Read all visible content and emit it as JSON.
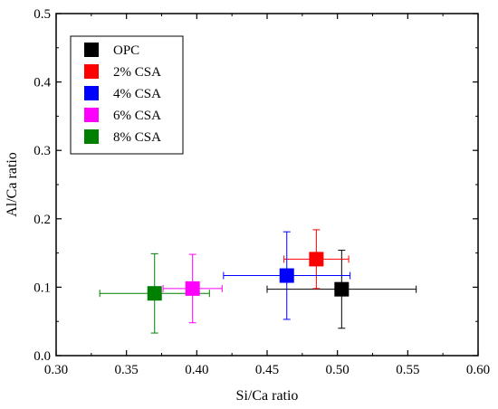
{
  "chart_data": {
    "type": "scatter",
    "title": "",
    "xlabel": "Si/Ca ratio",
    "ylabel": "Al/Ca ratio",
    "xlim": [
      0.3,
      0.6
    ],
    "ylim": [
      0.0,
      0.5
    ],
    "xticks": [
      "0.30",
      "0.35",
      "0.40",
      "0.45",
      "0.50",
      "0.55",
      "0.60"
    ],
    "yticks": [
      "0.0",
      "0.1",
      "0.2",
      "0.3",
      "0.4",
      "0.5"
    ],
    "grid": false,
    "legend_position": "top-left",
    "series": [
      {
        "name": "OPC",
        "color": "#000000",
        "x": 0.503,
        "y": 0.097,
        "x_err_minus": 0.053,
        "x_err_plus": 0.053,
        "y_err_minus": 0.057,
        "y_err_plus": 0.057
      },
      {
        "name": "2% CSA",
        "color": "#ff0000",
        "x": 0.485,
        "y": 0.141,
        "x_err_minus": 0.023,
        "x_err_plus": 0.023,
        "y_err_minus": 0.043,
        "y_err_plus": 0.043
      },
      {
        "name": "4% CSA",
        "color": "#0000ff",
        "x": 0.464,
        "y": 0.117,
        "x_err_minus": 0.045,
        "x_err_plus": 0.045,
        "y_err_minus": 0.064,
        "y_err_plus": 0.064
      },
      {
        "name": "6% CSA",
        "color": "#ff00ff",
        "x": 0.397,
        "y": 0.098,
        "x_err_minus": 0.021,
        "x_err_plus": 0.021,
        "y_err_minus": 0.05,
        "y_err_plus": 0.05
      },
      {
        "name": "8% CSA",
        "color": "#008000",
        "x": 0.37,
        "y": 0.091,
        "x_err_minus": 0.039,
        "x_err_plus": 0.039,
        "y_err_minus": 0.058,
        "y_err_plus": 0.058
      }
    ]
  }
}
